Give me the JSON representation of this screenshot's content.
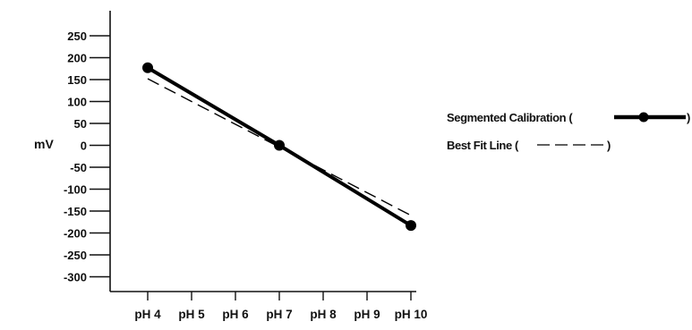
{
  "chart_data": {
    "type": "line",
    "title": "",
    "xlabel": "",
    "ylabel": "mV",
    "categories": [
      "pH 4",
      "pH 5",
      "pH 6",
      "pH 7",
      "pH 8",
      "pH 9",
      "pH 10"
    ],
    "y_ticks": [
      "250",
      "200",
      "150",
      "100",
      "50",
      "0",
      "-50",
      "-100",
      "-150",
      "-200",
      "-250",
      "-300"
    ],
    "grid": false,
    "legend_position": "right",
    "series": [
      {
        "name": "Segmented Calibration (",
        "legend_suffix": ")",
        "style": "solid-thick-with-markers",
        "color": "#000000",
        "x": [
          "pH 4",
          "pH 7",
          "pH 10"
        ],
        "values": [
          177,
          0,
          -183
        ]
      },
      {
        "name": "Best Fit Line (",
        "legend_suffix": ")",
        "style": "dashed",
        "color": "#000000",
        "x": [
          "pH 4",
          "pH 10"
        ],
        "values": [
          152,
          -160
        ]
      }
    ]
  }
}
